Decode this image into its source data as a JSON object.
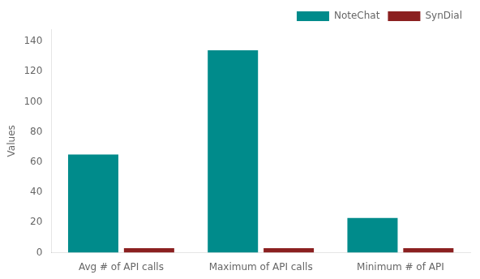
{
  "chart_data": {
    "type": "bar",
    "categories": [
      "Avg # of API calls",
      "Maximum of API calls",
      "Minimum # of API"
    ],
    "series": [
      {
        "name": "NoteChat",
        "color": "#008B8B",
        "values": [
          65,
          134,
          23
        ]
      },
      {
        "name": "SynDial",
        "color": "#8B2020",
        "values": [
          3,
          3,
          3
        ]
      }
    ],
    "ylabel": "Values",
    "ylim": [
      0,
      148
    ],
    "yticks": [
      0,
      20,
      40,
      60,
      80,
      100,
      120,
      140
    ],
    "grid": false,
    "legend": "upper right"
  }
}
